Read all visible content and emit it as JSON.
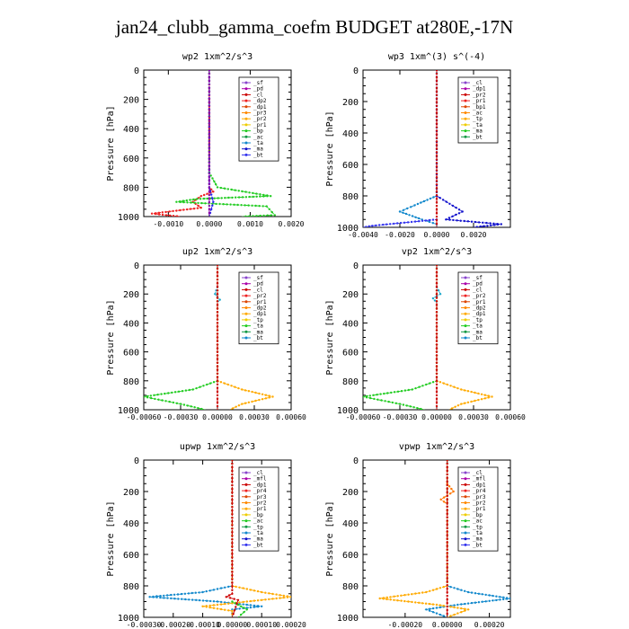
{
  "page": {
    "title": "jan24_clubb_gamma_coefm  BUDGET at280E,-17N"
  },
  "chart_data": [
    {
      "type": "line",
      "title": "wp2  1xm^2/s^3",
      "ylabel": "Pressure [hPa]",
      "ylim": [
        1000,
        0
      ],
      "yticks": [
        "0",
        "200",
        "400",
        "600",
        "800",
        "1000"
      ],
      "xlim": [
        -0.0016,
        0.002
      ],
      "xticks": [
        "-0.0010",
        "0.0000",
        "0.0010",
        "0.0020"
      ],
      "legend": {
        "position": "top-right",
        "entries": [
          "_sf",
          "_pd",
          "_cl",
          "_dp2",
          "_dp1",
          "_pr3",
          "_pr2",
          "_pr1",
          "_bp",
          "_ac",
          "_ta",
          "_ma",
          "_bt"
        ]
      },
      "series": [
        {
          "name": "_dp1",
          "color": "#ee2222",
          "values": [
            [
              0,
              0
            ],
            [
              0,
              600
            ],
            [
              0,
              800
            ],
            [
              0.0001,
              830
            ],
            [
              -0.0002,
              860
            ],
            [
              -0.0004,
              900
            ],
            [
              -0.0002,
              940
            ],
            [
              -0.0014,
              980
            ],
            [
              -0.0007,
              1000
            ]
          ]
        },
        {
          "name": "_pr1",
          "color": "#22cc22",
          "values": [
            [
              0,
              0
            ],
            [
              0,
              700
            ],
            [
              0.0002,
              800
            ],
            [
              0.0015,
              860
            ],
            [
              -0.0003,
              880
            ],
            [
              -0.0008,
              900
            ],
            [
              0.0014,
              930
            ],
            [
              0.0016,
              990
            ],
            [
              0.0008,
              1000
            ]
          ]
        },
        {
          "name": "_cl",
          "color": "#2222ee",
          "values": [
            [
              0,
              0
            ],
            [
              0,
              800
            ],
            [
              0.0001,
              900
            ],
            [
              0,
              1000
            ]
          ]
        },
        {
          "name": "_pd",
          "color": "#8800aa",
          "values": [
            [
              0,
              0
            ],
            [
              0,
              1000
            ]
          ]
        }
      ]
    },
    {
      "type": "line",
      "title": "wp3  1xm^(3) s^(-4)",
      "ylabel": "Pressure [hPa]",
      "ylim": [
        1000,
        0
      ],
      "yticks": [
        "0",
        "200",
        "400",
        "600",
        "800",
        "1000"
      ],
      "xlim": [
        -0.004,
        0.004
      ],
      "xticks": [
        "-0.0040",
        "-0.0020",
        "0.0000",
        "0.0020"
      ],
      "legend": {
        "position": "top-right",
        "entries": [
          "_cl",
          "_dp1",
          "_pr2",
          "_pr1",
          "_bp1",
          "_ac",
          "_tp",
          "_ta",
          "_ma",
          "_bt"
        ]
      },
      "series": [
        {
          "name": "_ac",
          "color": "#1188cc",
          "values": [
            [
              0,
              0
            ],
            [
              0,
              800
            ],
            [
              -0.0012,
              860
            ],
            [
              -0.002,
              900
            ],
            [
              -0.0008,
              950
            ],
            [
              0,
              980
            ],
            [
              0,
              1000
            ]
          ]
        },
        {
          "name": "_tp",
          "color": "#1111cc",
          "values": [
            [
              0,
              0
            ],
            [
              0,
              800
            ],
            [
              0.0014,
              900
            ],
            [
              0.0005,
              950
            ],
            [
              0.0035,
              980
            ],
            [
              0.002,
              1000
            ]
          ]
        },
        {
          "name": "_ta",
          "color": "#3333ee",
          "values": [
            [
              0,
              950
            ],
            [
              -0.0035,
              990
            ],
            [
              -0.004,
              1000
            ]
          ]
        },
        {
          "name": "_dp1",
          "color": "#cc0000",
          "values": [
            [
              0,
              0
            ],
            [
              0,
              1000
            ]
          ]
        }
      ]
    },
    {
      "type": "line",
      "title": "up2  1xm^2/s^3",
      "ylabel": "Pressure [hPa]",
      "ylim": [
        1000,
        0
      ],
      "yticks": [
        "0",
        "200",
        "400",
        "600",
        "800",
        "1000"
      ],
      "xlim": [
        -0.0006,
        0.0006
      ],
      "xticks": [
        "-0.00060",
        "-0.00030",
        "0.00000",
        "0.00030",
        "0.00060"
      ],
      "legend": {
        "position": "top-right",
        "entries": [
          "_sf",
          "_pd",
          "_cl",
          "_pr2",
          "_pr1",
          "_dp2",
          "_dp1",
          "_tp",
          "_ta",
          "_ma",
          "_bt"
        ]
      },
      "series": [
        {
          "name": "_pr1",
          "color": "#22cc22",
          "values": [
            [
              0,
              0
            ],
            [
              0,
              800
            ],
            [
              -0.0002,
              860
            ],
            [
              -0.0006,
              910
            ],
            [
              -0.0003,
              960
            ],
            [
              -0.0001,
              1000
            ]
          ]
        },
        {
          "name": "_pr2",
          "color": "#ffaa00",
          "values": [
            [
              0,
              0
            ],
            [
              0,
              800
            ],
            [
              0.0002,
              860
            ],
            [
              0.00045,
              910
            ],
            [
              0.0002,
              960
            ],
            [
              0.0001,
              1000
            ]
          ]
        },
        {
          "name": "_cl",
          "color": "#22aacc",
          "values": [
            [
              0,
              150
            ],
            [
              -2e-05,
              200
            ],
            [
              2e-05,
              240
            ],
            [
              0,
              260
            ]
          ]
        },
        {
          "name": "_pd",
          "color": "#cc0000",
          "values": [
            [
              0,
              0
            ],
            [
              0,
              1000
            ]
          ]
        }
      ]
    },
    {
      "type": "line",
      "title": "vp2  1xm^2/s^3",
      "ylabel": "Pressure [hPa]",
      "ylim": [
        1000,
        0
      ],
      "yticks": [
        "0",
        "200",
        "400",
        "600",
        "800",
        "1000"
      ],
      "xlim": [
        -0.0006,
        0.0006
      ],
      "xticks": [
        "-0.00060",
        "-0.00030",
        "0.00000",
        "0.00030",
        "0.00060"
      ],
      "legend": {
        "position": "top-right",
        "entries": [
          "_sf",
          "_pd",
          "_cl",
          "_pr2",
          "_pr1",
          "_dp2",
          "_dp1",
          "_tp",
          "_ta",
          "_ma",
          "_bt"
        ]
      },
      "series": [
        {
          "name": "_pr1",
          "color": "#22cc22",
          "values": [
            [
              0,
              0
            ],
            [
              0,
              800
            ],
            [
              -0.0002,
              860
            ],
            [
              -0.0006,
              910
            ],
            [
              -0.0003,
              960
            ],
            [
              -0.0001,
              1000
            ]
          ]
        },
        {
          "name": "_pr2",
          "color": "#ffaa00",
          "values": [
            [
              0,
              0
            ],
            [
              0,
              800
            ],
            [
              0.0002,
              860
            ],
            [
              0.00045,
              910
            ],
            [
              0.0002,
              960
            ],
            [
              0.0001,
              1000
            ]
          ]
        },
        {
          "name": "_tp",
          "color": "#22aacc",
          "values": [
            [
              0,
              150
            ],
            [
              3e-05,
              200
            ],
            [
              -3e-05,
              230
            ],
            [
              0,
              260
            ]
          ]
        },
        {
          "name": "_pd",
          "color": "#cc0000",
          "values": [
            [
              0,
              0
            ],
            [
              0,
              1000
            ]
          ]
        }
      ]
    },
    {
      "type": "line",
      "title": "upwp  1xm^2/s^3",
      "ylabel": "Pressure [hPa]",
      "ylim": [
        1000,
        0
      ],
      "yticks": [
        "0",
        "200",
        "400",
        "600",
        "800",
        "1000"
      ],
      "xlim": [
        -0.0003,
        0.0002
      ],
      "xticks": [
        "-0.00030",
        "-0.00020",
        "-0.00010",
        "0.00000",
        "0.00010",
        "0.00020"
      ],
      "legend": {
        "position": "top-right",
        "entries": [
          "_cl",
          "_mfl",
          "_dp1",
          "_pr4",
          "_pr3",
          "_pr2",
          "_pr1",
          "_bp",
          "_ac",
          "_tp",
          "_ta",
          "_ma",
          "_bt"
        ]
      },
      "series": [
        {
          "name": "_ac",
          "color": "#1188cc",
          "values": [
            [
              0,
              0
            ],
            [
              0,
              800
            ],
            [
              -0.0001,
              840
            ],
            [
              -0.00028,
              870
            ],
            [
              -5e-05,
              900
            ],
            [
              0.0001,
              930
            ],
            [
              0,
              950
            ],
            [
              0,
              1000
            ]
          ]
        },
        {
          "name": "_pr2",
          "color": "#ffaa00",
          "values": [
            [
              0,
              0
            ],
            [
              0,
              800
            ],
            [
              0.0001,
              840
            ],
            [
              0.0002,
              870
            ],
            [
              5e-05,
              900
            ],
            [
              -0.0001,
              930
            ],
            [
              0,
              960
            ],
            [
              0,
              1000
            ]
          ]
        },
        {
          "name": "_bp",
          "color": "#22cc22",
          "values": [
            [
              0,
              900
            ],
            [
              5e-05,
              950
            ],
            [
              2e-05,
              1000
            ]
          ]
        },
        {
          "name": "_dp1",
          "color": "#cc0000",
          "values": [
            [
              0,
              0
            ],
            [
              0,
              850
            ],
            [
              -2e-05,
              870
            ],
            [
              2e-05,
              890
            ],
            [
              0,
              1000
            ]
          ]
        }
      ]
    },
    {
      "type": "line",
      "title": "vpwp  1xm^2/s^3",
      "ylabel": "Pressure [hPa]",
      "ylim": [
        1000,
        0
      ],
      "yticks": [
        "0",
        "200",
        "400",
        "600",
        "800",
        "1000"
      ],
      "xlim": [
        -0.0004,
        0.0003
      ],
      "xticks": [
        "-0.00020",
        "0.00000",
        "0.00020"
      ],
      "legend": {
        "position": "top-right",
        "entries": [
          "_cl",
          "_mfl",
          "_dp1",
          "_pr4",
          "_pr3",
          "_pr2",
          "_pr1",
          "_bp",
          "_ac",
          "_tp",
          "_ta",
          "_ma",
          "_bt"
        ]
      },
      "series": [
        {
          "name": "_ac",
          "color": "#1188cc",
          "values": [
            [
              0,
              0
            ],
            [
              0,
              800
            ],
            [
              0.0001,
              840
            ],
            [
              0.0003,
              880
            ],
            [
              5e-05,
              920
            ],
            [
              -0.0001,
              950
            ],
            [
              0,
              1000
            ]
          ]
        },
        {
          "name": "_pr2",
          "color": "#ffaa00",
          "values": [
            [
              0,
              0
            ],
            [
              0,
              800
            ],
            [
              -0.0001,
              840
            ],
            [
              -0.00032,
              880
            ],
            [
              -5e-05,
              920
            ],
            [
              0.0001,
              950
            ],
            [
              0,
              1000
            ]
          ]
        },
        {
          "name": "_pr3",
          "color": "#ff7700",
          "values": [
            [
              0,
              150
            ],
            [
              3e-05,
              200
            ],
            [
              -3e-05,
              250
            ],
            [
              0,
              280
            ]
          ]
        },
        {
          "name": "_dp1",
          "color": "#cc0000",
          "values": [
            [
              0,
              0
            ],
            [
              0,
              1000
            ]
          ]
        }
      ]
    }
  ]
}
